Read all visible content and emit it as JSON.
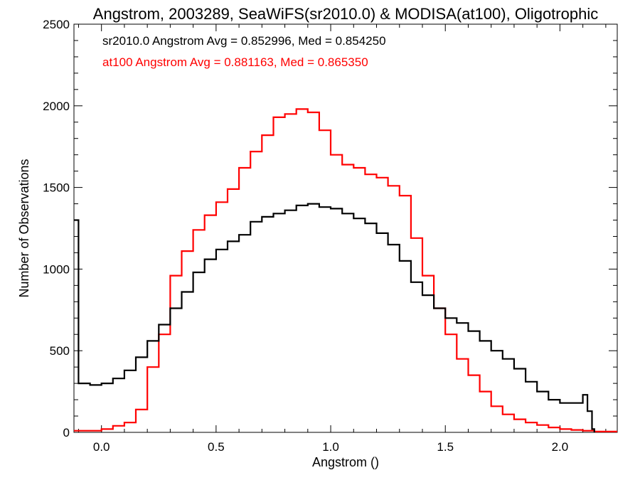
{
  "chart_data": {
    "type": "line",
    "title": "Angstrom, 2003289, SeaWiFS(sr2010.0) & MODISA(at100), Oligotrophic",
    "xlabel": "Angstrom ()",
    "ylabel": "Number of Observations",
    "xlim": [
      -0.12,
      2.25
    ],
    "ylim": [
      0,
      2500
    ],
    "xticks": [
      0.0,
      0.5,
      1.0,
      1.5,
      2.0
    ],
    "xtick_labels": [
      "0.0",
      "0.5",
      "1.0",
      "1.5",
      "2.0"
    ],
    "yticks": [
      0,
      500,
      1000,
      1500,
      2000,
      2500
    ],
    "ytick_labels": [
      "0",
      "500",
      "1000",
      "1500",
      "2000",
      "2500"
    ],
    "grid": false,
    "annotations": [
      {
        "text": "sr2010.0 Angstrom Avg = 0.852996, Med = 0.854250",
        "color": "#000000"
      },
      {
        "text": "at100 Angstrom Avg = 0.881163, Med = 0.865350",
        "color": "#ff0000"
      }
    ],
    "series": [
      {
        "color": "#000000",
        "x": [
          -0.12,
          -0.1,
          -0.05,
          0.0,
          0.05,
          0.1,
          0.15,
          0.2,
          0.25,
          0.3,
          0.35,
          0.4,
          0.45,
          0.5,
          0.55,
          0.6,
          0.65,
          0.7,
          0.75,
          0.8,
          0.85,
          0.9,
          0.95,
          1.0,
          1.05,
          1.1,
          1.15,
          1.2,
          1.25,
          1.3,
          1.35,
          1.4,
          1.45,
          1.5,
          1.55,
          1.6,
          1.65,
          1.7,
          1.75,
          1.8,
          1.85,
          1.9,
          1.95,
          2.0,
          2.05,
          2.1,
          2.12,
          2.14
        ],
        "values": [
          1300,
          300,
          290,
          300,
          330,
          380,
          460,
          560,
          660,
          760,
          860,
          980,
          1060,
          1120,
          1170,
          1210,
          1290,
          1320,
          1340,
          1360,
          1390,
          1400,
          1380,
          1370,
          1340,
          1310,
          1280,
          1220,
          1150,
          1050,
          920,
          840,
          760,
          700,
          670,
          620,
          560,
          500,
          450,
          390,
          310,
          250,
          200,
          180,
          180,
          230,
          130,
          20
        ]
      },
      {
        "color": "#ff0000",
        "x": [
          -0.12,
          -0.05,
          0.0,
          0.05,
          0.1,
          0.15,
          0.2,
          0.25,
          0.3,
          0.35,
          0.4,
          0.45,
          0.5,
          0.55,
          0.6,
          0.65,
          0.7,
          0.75,
          0.8,
          0.85,
          0.9,
          0.95,
          1.0,
          1.05,
          1.1,
          1.15,
          1.2,
          1.25,
          1.3,
          1.35,
          1.4,
          1.45,
          1.5,
          1.55,
          1.6,
          1.65,
          1.7,
          1.75,
          1.8,
          1.85,
          1.9,
          1.95,
          2.0,
          2.05,
          2.1,
          2.15,
          2.2,
          2.25
        ],
        "values": [
          10,
          10,
          20,
          40,
          60,
          140,
          400,
          600,
          960,
          1110,
          1240,
          1330,
          1410,
          1490,
          1620,
          1720,
          1820,
          1930,
          1950,
          1980,
          1960,
          1850,
          1700,
          1640,
          1620,
          1580,
          1560,
          1510,
          1450,
          1190,
          960,
          760,
          600,
          450,
          350,
          250,
          160,
          110,
          80,
          60,
          45,
          30,
          20,
          15,
          10,
          5,
          5,
          5
        ]
      }
    ]
  }
}
